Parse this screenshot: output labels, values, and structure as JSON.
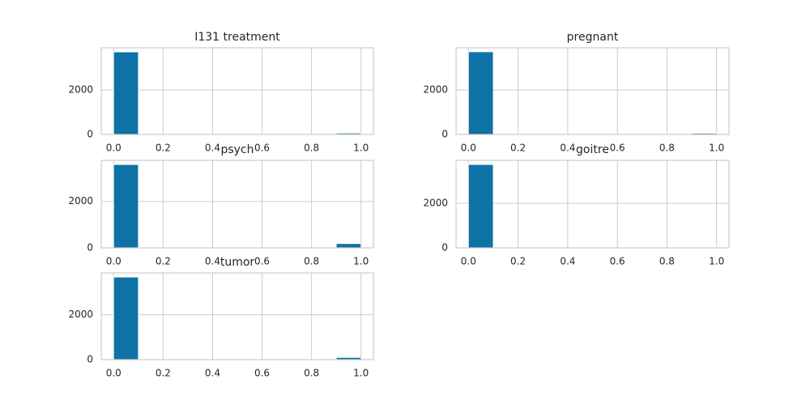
{
  "chart_data": [
    {
      "type": "histogram",
      "title": "I131 treatment",
      "bins": [
        0,
        0.1,
        0.2,
        0.3,
        0.4,
        0.5,
        0.6,
        0.7,
        0.8,
        0.9,
        1
      ],
      "counts": [
        3713,
        0,
        0,
        0,
        0,
        0,
        0,
        0,
        0,
        59
      ],
      "color": "#0e72a6",
      "xlim": [
        -0.05,
        1.05
      ],
      "ylim": [
        0,
        3900
      ],
      "xticks": [
        {
          "value": 0,
          "label": "0.0"
        },
        0.2,
        0.4,
        0.6,
        0.8,
        {
          "value": 1,
          "label": "1.0"
        }
      ],
      "yticks": [
        0,
        2000
      ],
      "grid": true
    },
    {
      "type": "histogram",
      "title": "pregnant",
      "bins": [
        0,
        0.1,
        0.2,
        0.3,
        0.4,
        0.5,
        0.6,
        0.7,
        0.8,
        0.9,
        1
      ],
      "counts": [
        3719,
        0,
        0,
        0,
        0,
        0,
        0,
        0,
        0,
        53
      ],
      "color": "#0e72a6",
      "xlim": [
        -0.05,
        1.05
      ],
      "ylim": [
        0,
        3900
      ],
      "xticks": [
        {
          "value": 0,
          "label": "0.0"
        },
        0.2,
        0.4,
        0.6,
        0.8,
        {
          "value": 1,
          "label": "1.0"
        }
      ],
      "yticks": [
        0,
        2000
      ],
      "grid": true
    },
    {
      "type": "histogram",
      "title": "psych",
      "bins": [
        0,
        0.1,
        0.2,
        0.3,
        0.4,
        0.5,
        0.6,
        0.7,
        0.8,
        0.9,
        1
      ],
      "counts": [
        3588,
        0,
        0,
        0,
        0,
        0,
        0,
        0,
        0,
        184
      ],
      "color": "#0e72a6",
      "xlim": [
        -0.05,
        1.05
      ],
      "ylim": [
        0,
        3770
      ],
      "xticks": [
        {
          "value": 0,
          "label": "0.0"
        },
        0.2,
        0.4,
        0.6,
        0.8,
        {
          "value": 1,
          "label": "1.0"
        }
      ],
      "yticks": [
        0,
        2000
      ],
      "grid": true
    },
    {
      "type": "histogram",
      "title": "goitre",
      "bins": [
        0,
        0.1,
        0.2,
        0.3,
        0.4,
        0.5,
        0.6,
        0.7,
        0.8,
        0.9,
        1
      ],
      "counts": [
        3738,
        0,
        0,
        0,
        0,
        0,
        0,
        0,
        0,
        34
      ],
      "color": "#0e72a6",
      "xlim": [
        -0.05,
        1.05
      ],
      "ylim": [
        0,
        3925
      ],
      "xticks": [
        {
          "value": 0,
          "label": "0.0"
        },
        0.2,
        0.4,
        0.6,
        0.8,
        {
          "value": 1,
          "label": "1.0"
        }
      ],
      "yticks": [
        0,
        2000
      ],
      "grid": true
    },
    {
      "type": "histogram",
      "title": "tumor",
      "bins": [
        0,
        0.1,
        0.2,
        0.3,
        0.4,
        0.5,
        0.6,
        0.7,
        0.8,
        0.9,
        1
      ],
      "counts": [
        3676,
        0,
        0,
        0,
        0,
        0,
        0,
        0,
        0,
        96
      ],
      "color": "#0e72a6",
      "xlim": [
        -0.05,
        1.05
      ],
      "ylim": [
        0,
        3860
      ],
      "xticks": [
        {
          "value": 0,
          "label": "0.0"
        },
        0.2,
        0.4,
        0.6,
        0.8,
        {
          "value": 1,
          "label": "1.0"
        }
      ],
      "yticks": [
        0,
        2000
      ],
      "grid": true
    }
  ]
}
